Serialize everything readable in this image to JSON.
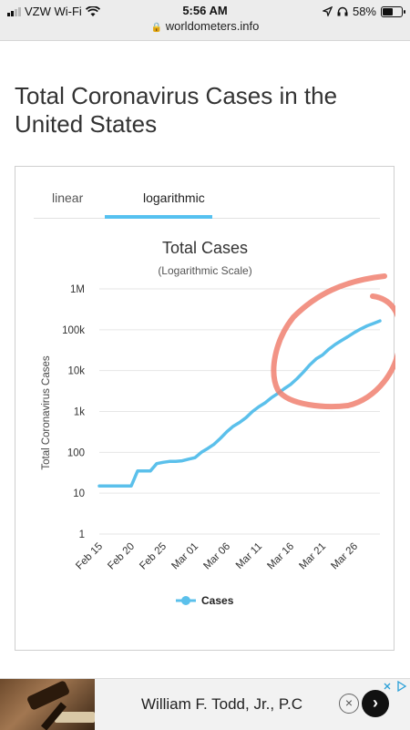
{
  "status_bar": {
    "carrier": "VZW Wi-Fi",
    "time": "5:56 AM",
    "url": "worldometers.info",
    "battery_percent": "58%",
    "battery_level": 0.58
  },
  "page": {
    "title": "Total Coronavirus Cases in the United States"
  },
  "tabs": [
    {
      "label": "linear",
      "active": false
    },
    {
      "label": "logarithmic",
      "active": true
    }
  ],
  "chart_data": {
    "type": "line",
    "title": "Total Cases",
    "subtitle": "(Logarithmic Scale)",
    "ylabel": "Total Coronavirus Cases",
    "xlabel": "",
    "y_scale": "log",
    "ylim": [
      1,
      1000000
    ],
    "y_ticks": [
      {
        "value": 1,
        "label": "1"
      },
      {
        "value": 10,
        "label": "10"
      },
      {
        "value": 100,
        "label": "100"
      },
      {
        "value": 1000,
        "label": "1k"
      },
      {
        "value": 10000,
        "label": "10k"
      },
      {
        "value": 100000,
        "label": "100k"
      },
      {
        "value": 1000000,
        "label": "1M"
      }
    ],
    "x_ticks": [
      "Feb 15",
      "Feb 20",
      "Feb 25",
      "Mar 01",
      "Mar 06",
      "Mar 11",
      "Mar 16",
      "Mar 21",
      "Mar 26"
    ],
    "x_tick_index": [
      0,
      5,
      10,
      15,
      20,
      25,
      30,
      35,
      40
    ],
    "grid": true,
    "legend_position": "bottom-center",
    "color": "#5bc0eb",
    "series": [
      {
        "name": "Cases",
        "values": [
          15,
          15,
          15,
          15,
          15,
          15,
          35,
          35,
          35,
          53,
          57,
          60,
          60,
          62,
          68,
          74,
          100,
          124,
          158,
          221,
          319,
          435,
          541,
          704,
          994,
          1301,
          1630,
          2183,
          2770,
          3613,
          4596,
          6344,
          9197,
          13779,
          19367,
          24192,
          33592,
          43781,
          54856,
          68211,
          85996,
          104686,
          124665,
          143025,
          164620
        ]
      }
    ],
    "annotation_color": "#f08070"
  },
  "ad": {
    "text": "William F. Todd, Jr., P.C",
    "close_glyph": "×",
    "next_glyph": "›"
  }
}
